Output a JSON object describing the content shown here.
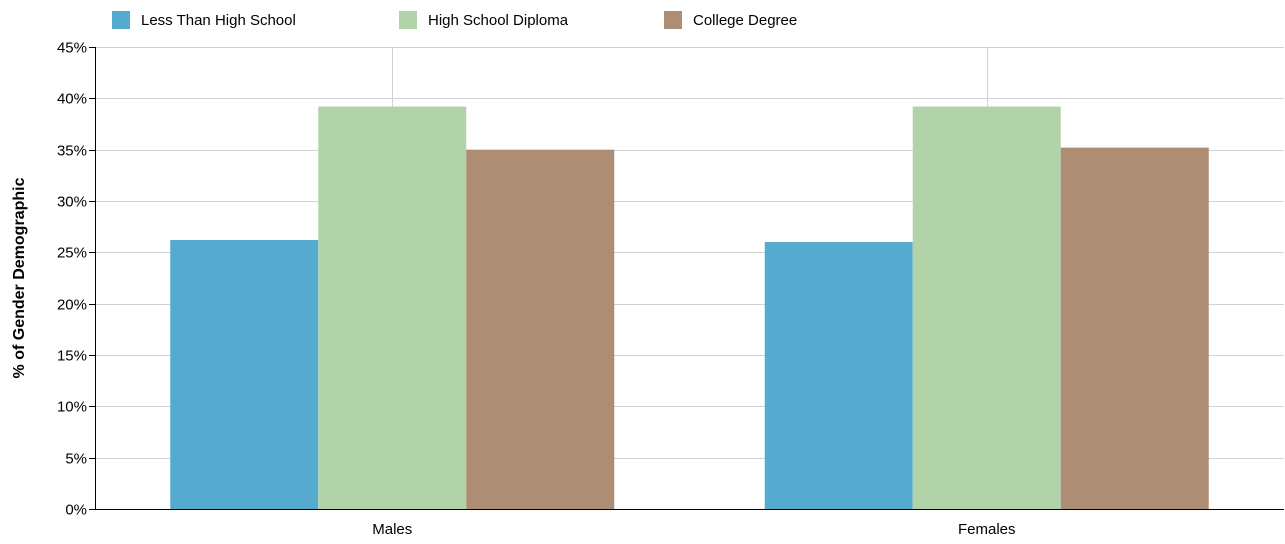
{
  "chart_data": {
    "type": "bar",
    "categories": [
      "Males",
      "Females"
    ],
    "series": [
      {
        "name": "Less Than High School",
        "values": [
          26.2,
          26.0
        ],
        "color": "#55aacf"
      },
      {
        "name": "High School Diploma",
        "values": [
          39.2,
          39.2
        ],
        "color": "#b2d3aa"
      },
      {
        "name": "College Degree",
        "values": [
          35.0,
          35.2
        ],
        "color": "#ad8d74"
      }
    ],
    "ylabel": "% of Gender Demographic",
    "xlabel": "",
    "ylim": [
      0,
      45
    ],
    "yticks": [
      0,
      5,
      10,
      15,
      20,
      25,
      30,
      35,
      40,
      45
    ],
    "ytick_labels": [
      "0%",
      "5%",
      "10%",
      "15%",
      "20%",
      "25%",
      "30%",
      "35%",
      "40%",
      "45%"
    ],
    "grid": true,
    "legend_position": "top-left"
  }
}
